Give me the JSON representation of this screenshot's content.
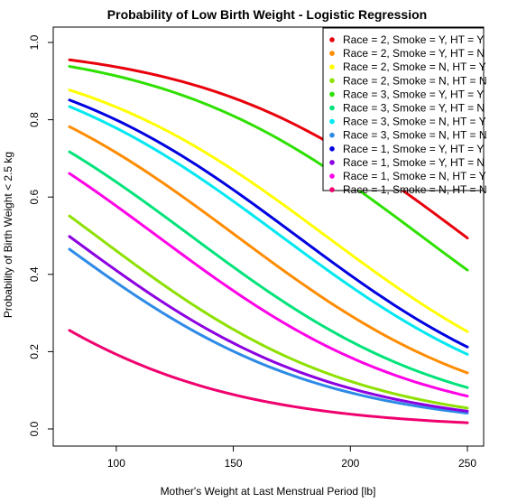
{
  "chart_data": {
    "type": "line",
    "title": "Probability of Low Birth Weight - Logistic Regression",
    "xlabel": "Mother's Weight at Last Menstrual Period [lb]",
    "ylabel": "Probability of Birth Weight < 2.5 kg",
    "xlim": [
      80,
      250
    ],
    "ylim": [
      0.0,
      1.0
    ],
    "x_ticks": [
      100,
      150,
      200,
      250
    ],
    "y_ticks": [
      0.0,
      0.2,
      0.4,
      0.6,
      0.8,
      1.0
    ],
    "x_tick_labels": [
      "100",
      "150",
      "200",
      "250"
    ],
    "y_tick_labels": [
      "0.0",
      "0.2",
      "0.4",
      "0.6",
      "0.8",
      "1.0"
    ],
    "grid": false,
    "legend_position": "top-right",
    "x": [
      80,
      250
    ],
    "series": [
      {
        "name": "Race = 2, Smoke = Y, HT = Y",
        "color": "#e8000b",
        "values": [
          0.955,
          0.494
        ]
      },
      {
        "name": "Race = 2, Smoke = Y, HT = N",
        "color": "#ff8c00",
        "values": [
          0.782,
          0.145
        ]
      },
      {
        "name": "Race = 2, Smoke = N, HT = Y",
        "color": "#ffff00",
        "values": [
          0.877,
          0.252
        ]
      },
      {
        "name": "Race = 2, Smoke = N, HT = N",
        "color": "#8ee000",
        "values": [
          0.551,
          0.054
        ]
      },
      {
        "name": "Race = 3, Smoke = Y, HT = Y",
        "color": "#2ee000",
        "values": [
          0.938,
          0.411
        ]
      },
      {
        "name": "Race = 3, Smoke = Y, HT = N",
        "color": "#00e37a",
        "values": [
          0.717,
          0.107
        ]
      },
      {
        "name": "Race = 3, Smoke = N, HT = Y",
        "color": "#00e8f0",
        "values": [
          0.834,
          0.193
        ]
      },
      {
        "name": "Race = 3, Smoke = N, HT = N",
        "color": "#2d8ae6",
        "values": [
          0.465,
          0.041
        ]
      },
      {
        "name": "Race = 1, Smoke = Y, HT = Y",
        "color": "#0000e0",
        "values": [
          0.851,
          0.212
        ]
      },
      {
        "name": "Race = 1, Smoke = Y, HT = N",
        "color": "#8c00e0",
        "values": [
          0.498,
          0.046
        ]
      },
      {
        "name": "Race = 1, Smoke = N, HT = Y",
        "color": "#ff00e6",
        "values": [
          0.661,
          0.085
        ]
      },
      {
        "name": "Race = 1, Smoke = N, HT = N",
        "color": "#f0006e",
        "values": [
          0.255,
          0.016
        ]
      }
    ]
  }
}
